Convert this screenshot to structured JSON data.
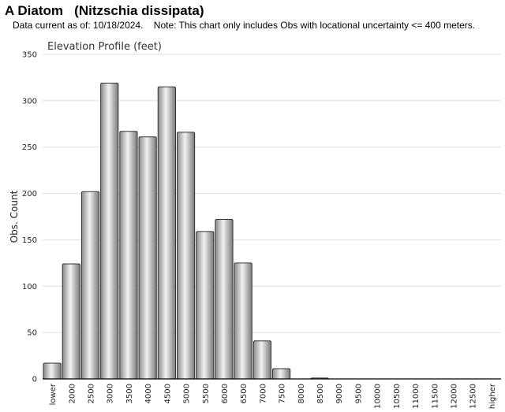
{
  "header": {
    "title": "A Diatom   (Nitzschia dissipata)",
    "subtitle": "Data current as of: 10/18/2024.    Note: This chart only includes Obs with locational uncertainty <= 400 meters."
  },
  "chart_data": {
    "type": "bar",
    "title": "Elevation Profile (feet)",
    "xlabel": "",
    "ylabel": "Obs. Count",
    "ylim": [
      0,
      350
    ],
    "yticks": [
      0,
      50,
      100,
      150,
      200,
      250,
      300,
      350
    ],
    "grid": true,
    "legend": "none",
    "bar_color": "#bdbdbd",
    "categories": [
      "lower",
      "2000",
      "2500",
      "3000",
      "3500",
      "4000",
      "4500",
      "5000",
      "5500",
      "6000",
      "6500",
      "7000",
      "7500",
      "8000",
      "8500",
      "9000",
      "9500",
      "10000",
      "10500",
      "11000",
      "11500",
      "12000",
      "12500",
      "higher"
    ],
    "values": [
      17,
      124,
      202,
      319,
      267,
      261,
      315,
      266,
      159,
      172,
      125,
      41,
      11,
      0,
      1,
      0,
      0,
      0,
      0,
      0,
      0,
      0,
      0,
      0
    ]
  }
}
